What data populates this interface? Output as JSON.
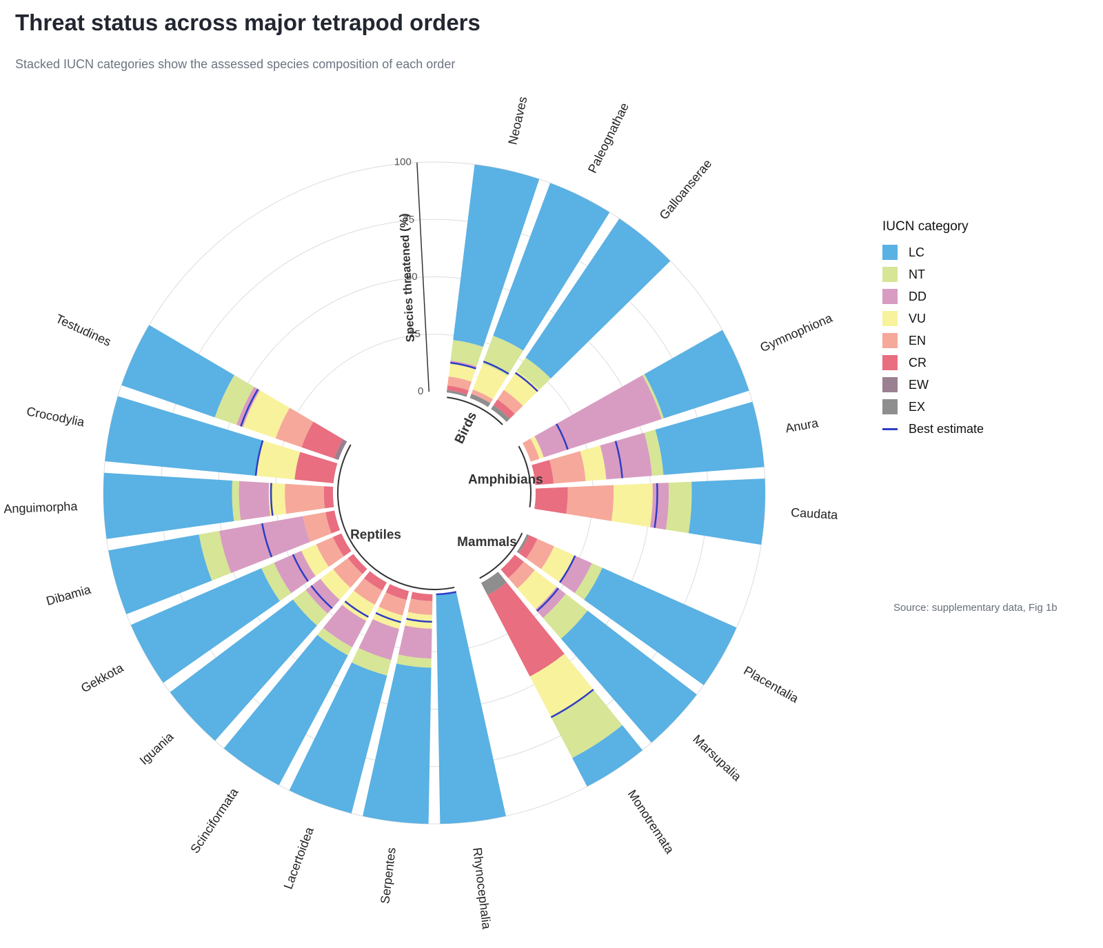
{
  "title": "Threat status across major tetrapod orders",
  "subtitle": "Stacked IUCN categories show the assessed species composition of each order",
  "source": "Source: supplementary data, Fig 1b",
  "legend": {
    "title": "IUCN category",
    "best_estimate_label": "Best estimate",
    "best_estimate_color": "#2e3dc4"
  },
  "colors": {
    "LC": "#5ab1e3",
    "NT": "#d6e596",
    "DD": "#d89cc2",
    "VU": "#f8f29c",
    "EN": "#f6a89a",
    "CR": "#e86e80",
    "EW": "#9a8091",
    "EX": "#8e8e8e"
  },
  "chart_data": {
    "type": "stacked radial bar",
    "axis_label": "Species threatened (%)",
    "radial_range": [
      0,
      100
    ],
    "radial_ticks": [
      "0",
      "25",
      "50",
      "75",
      "100"
    ],
    "categories_order": [
      "EX",
      "EW",
      "CR",
      "EN",
      "VU",
      "DD",
      "NT",
      "LC"
    ],
    "legend_order": [
      "LC",
      "NT",
      "DD",
      "VU",
      "EN",
      "CR",
      "EW",
      "EX"
    ],
    "groups": [
      {
        "name": "Birds",
        "orders": [
          {
            "name": "Neoaves",
            "EX": 1,
            "EW": 0,
            "CR": 2,
            "EN": 4,
            "VU": 6,
            "DD": 1,
            "NT": 9,
            "LC": 77,
            "best": 13
          },
          {
            "name": "Paleognathae",
            "EX": 2,
            "EW": 0,
            "CR": 0,
            "EN": 2,
            "VU": 12,
            "DD": 0,
            "NT": 13,
            "LC": 71,
            "best": 17
          },
          {
            "name": "Galloanserae",
            "EX": 2,
            "EW": 0,
            "CR": 3,
            "EN": 5,
            "VU": 10,
            "DD": 0,
            "NT": 7,
            "LC": 73,
            "best": 19
          }
        ]
      },
      {
        "name": "Amphibians",
        "orders": [
          {
            "name": "Gymnophiona",
            "EX": 0,
            "EW": 0,
            "CR": 0,
            "EN": 4,
            "VU": 2,
            "DD": 54,
            "NT": 1,
            "LC": 39,
            "best": 17
          },
          {
            "name": "Anura",
            "EX": 0,
            "EW": 0,
            "CR": 8,
            "EN": 14,
            "VU": 9,
            "DD": 20,
            "NT": 5,
            "LC": 44,
            "best": 38
          },
          {
            "name": "Caudata",
            "EX": 0,
            "EW": 0,
            "CR": 14,
            "EN": 20,
            "VU": 17,
            "DD": 7,
            "NT": 10,
            "LC": 32,
            "best": 53
          }
        ]
      },
      {
        "name": "Mammals",
        "orders": [
          {
            "name": "Placentalia",
            "EX": 1,
            "EW": 0,
            "CR": 4,
            "EN": 8,
            "VU": 10,
            "DD": 8,
            "NT": 5,
            "LC": 64,
            "best": 23
          },
          {
            "name": "Marsupalia",
            "EX": 0,
            "EW": 0,
            "CR": 5,
            "EN": 6,
            "VU": 12,
            "DD": 5,
            "NT": 12,
            "LC": 60,
            "best": 24
          },
          {
            "name": "Monotremata",
            "EX": 6,
            "EW": 0,
            "CR": 40,
            "EN": 0,
            "VU": 20,
            "DD": 0,
            "NT": 20,
            "LC": 14,
            "best": 66
          }
        ]
      },
      {
        "name": "Reptiles",
        "orders": [
          {
            "name": "Rhynocephalia",
            "EX": 0,
            "EW": 0,
            "CR": 0,
            "EN": 0,
            "VU": 0,
            "DD": 0,
            "NT": 0,
            "LC": 100,
            "best": 0
          },
          {
            "name": "Serpentes",
            "EX": 0,
            "EW": 0,
            "CR": 3,
            "EN": 6,
            "VU": 6,
            "DD": 13,
            "NT": 4,
            "LC": 68,
            "best": 12
          },
          {
            "name": "Lacertoidea",
            "EX": 0,
            "EW": 0,
            "CR": 4,
            "EN": 7,
            "VU": 6,
            "DD": 14,
            "NT": 7,
            "LC": 62,
            "best": 14
          },
          {
            "name": "Scinciformata",
            "EX": 0,
            "EW": 0,
            "CR": 4,
            "EN": 7,
            "VU": 8,
            "DD": 13,
            "NT": 4,
            "LC": 64,
            "best": 17
          },
          {
            "name": "Iguania",
            "EX": 0,
            "EW": 0,
            "CR": 3,
            "EN": 8,
            "VU": 7,
            "DD": 8,
            "NT": 7,
            "LC": 67,
            "best": 23
          },
          {
            "name": "Gekkota",
            "EX": 0,
            "EW": 0,
            "CR": 4,
            "EN": 8,
            "VU": 7,
            "DD": 13,
            "NT": 6,
            "LC": 62,
            "best": 23
          },
          {
            "name": "Dibamia",
            "EX": 0,
            "EW": 0,
            "CR": 4,
            "EN": 10,
            "VU": 0,
            "DD": 37,
            "NT": 9,
            "LC": 40,
            "best": 32
          },
          {
            "name": "Anguimorpha",
            "EX": 0,
            "EW": 0,
            "CR": 4,
            "EN": 17,
            "VU": 7,
            "DD": 13,
            "NT": 3,
            "LC": 56,
            "best": 27
          },
          {
            "name": "Crocodylia",
            "EX": 0,
            "EW": 0,
            "CR": 17,
            "EN": 0,
            "VU": 17,
            "DD": 0,
            "NT": 0,
            "LC": 66,
            "best": 34
          },
          {
            "name": "Testudines",
            "EX": 0,
            "EW": 2,
            "CR": 15,
            "EN": 12,
            "VU": 15,
            "DD": 3,
            "NT": 10,
            "LC": 43,
            "best": 45
          }
        ]
      }
    ]
  }
}
